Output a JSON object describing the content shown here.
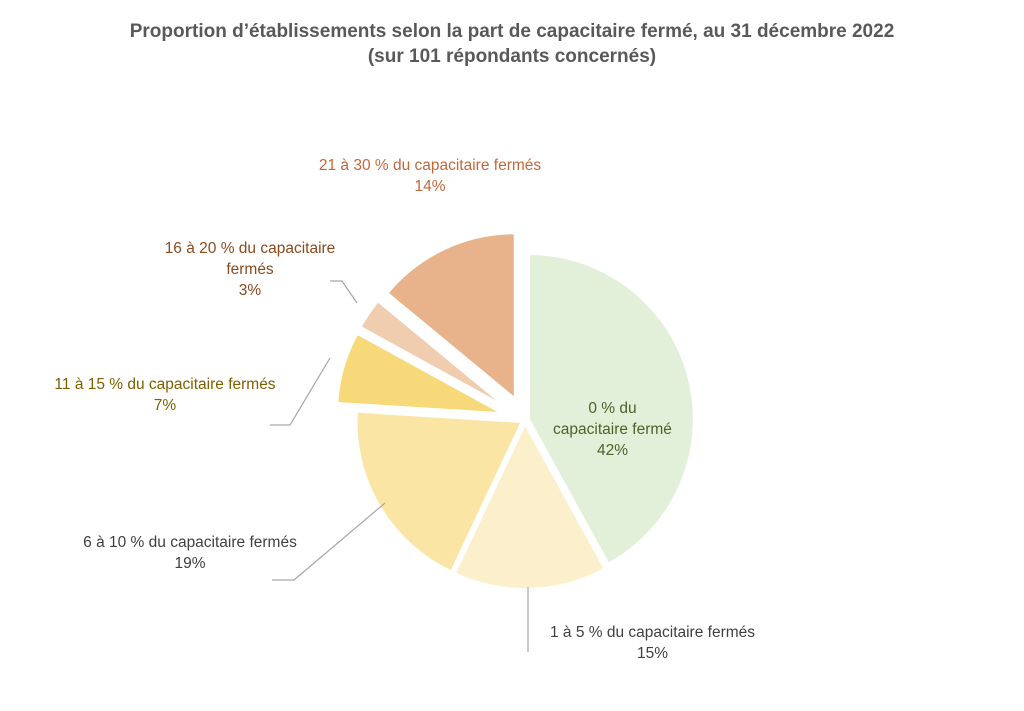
{
  "chart_data": {
    "type": "pie",
    "title": "Proportion d’établissements selon la part de capacitaire fermé, au 31 décembre 2022",
    "subtitle": "(sur 101 répondants concernés)",
    "slices": [
      {
        "label": "0 % du capacitaire fermé",
        "value": 42,
        "value_label": "42%",
        "color": "#e2efd9",
        "label_color": "#4f6228",
        "exploded": false
      },
      {
        "label": "1 à 5 % du capacitaire fermés",
        "value": 15,
        "value_label": "15%",
        "color": "#fcf0cc",
        "label_color": "#404040",
        "exploded": false
      },
      {
        "label": "6 à 10 % du capacitaire fermés",
        "value": 19,
        "value_label": "19%",
        "color": "#fae5a5",
        "label_color": "#404040",
        "exploded": false
      },
      {
        "label": "11 à 15 % du capacitaire fermés",
        "value": 7,
        "value_label": "7%",
        "color": "#f7d979",
        "label_color": "#7f6000",
        "exploded": true
      },
      {
        "label": "16 à 20 % du capacitaire fermés",
        "value": 3,
        "value_label": "3%",
        "color": "#f1cdb0",
        "label_color": "#8a4a1e",
        "exploded": true
      },
      {
        "label": "21 à 30 % du capacitaire fermés",
        "value": 14,
        "value_label": "14%",
        "color": "#e8b28a",
        "label_color": "#c0683a",
        "exploded": true
      }
    ],
    "legend": "none"
  }
}
